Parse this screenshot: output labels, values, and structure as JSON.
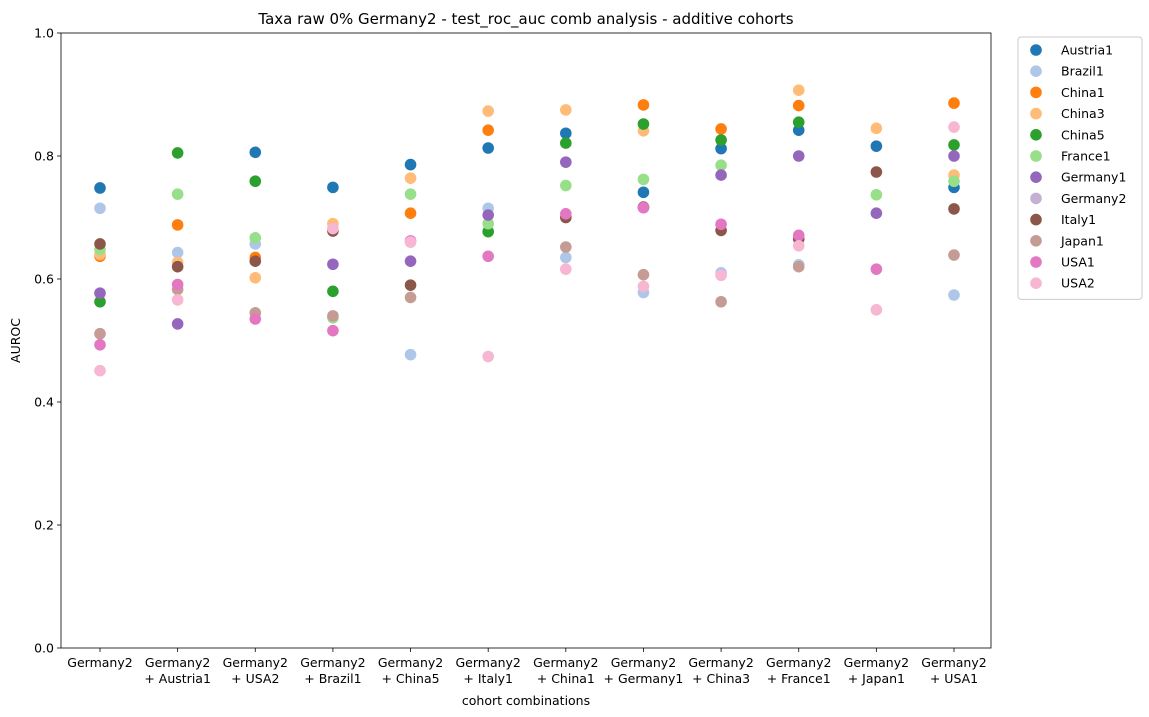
{
  "chart_data": {
    "type": "scatter",
    "title": "Taxa raw 0% Germany2 - test_roc_auc comb analysis - additive cohorts",
    "xlabel": "cohort combinations",
    "ylabel": "AUROC",
    "ylim": [
      0,
      1
    ],
    "yticks": [
      "0.0",
      "0.2",
      "0.4",
      "0.6",
      "0.8",
      "1.0"
    ],
    "grid": false,
    "legend": "outside-right",
    "categories": [
      [
        "Germany2"
      ],
      [
        "Germany2",
        "+ Austria1"
      ],
      [
        "Germany2",
        "+ USA2"
      ],
      [
        "Germany2",
        "+ Brazil1"
      ],
      [
        "Germany2",
        "+ China5"
      ],
      [
        "Germany2",
        "+ Italy1"
      ],
      [
        "Germany2",
        "+ China1"
      ],
      [
        "Germany2",
        "+ Germany1"
      ],
      [
        "Germany2",
        "+ China3"
      ],
      [
        "Germany2",
        "+ France1"
      ],
      [
        "Germany2",
        "+ Japan1"
      ],
      [
        "Germany2",
        "+ USA1"
      ]
    ],
    "series": [
      {
        "name": "Austria1",
        "color": "#1f77b4",
        "values": [
          0.748,
          null,
          0.806,
          0.749,
          0.786,
          0.813,
          0.837,
          0.741,
          0.812,
          0.842,
          0.816,
          0.749
        ]
      },
      {
        "name": "Brazil1",
        "color": "#aec7e8",
        "values": [
          0.715,
          0.643,
          0.657,
          null,
          0.477,
          0.715,
          0.635,
          0.578,
          0.61,
          0.623,
          null,
          0.574
        ]
      },
      {
        "name": "China1",
        "color": "#ff7f0e",
        "values": [
          0.637,
          0.688,
          0.635,
          null,
          0.707,
          0.842,
          null,
          0.883,
          0.844,
          0.882,
          null,
          0.886
        ]
      },
      {
        "name": "China3",
        "color": "#ffbb78",
        "values": [
          0.64,
          0.627,
          0.602,
          0.69,
          0.764,
          0.873,
          0.875,
          0.841,
          null,
          0.907,
          0.845,
          0.769
        ]
      },
      {
        "name": "China5",
        "color": "#2ca02c",
        "values": [
          0.563,
          0.805,
          0.759,
          0.58,
          null,
          0.677,
          0.821,
          0.852,
          0.826,
          0.855,
          null,
          0.818
        ]
      },
      {
        "name": "France1",
        "color": "#98df8a",
        "values": [
          0.648,
          0.738,
          0.667,
          0.537,
          0.738,
          0.69,
          0.752,
          0.762,
          0.785,
          null,
          0.737,
          0.759
        ]
      },
      {
        "name": "Germany1",
        "color": "#9467bd",
        "values": [
          0.577,
          0.527,
          null,
          0.624,
          0.629,
          0.704,
          0.79,
          0.716,
          0.769,
          0.8,
          0.707,
          0.8
        ]
      },
      {
        "name": "Germany2",
        "color": "#c5b0d5",
        "values": [
          null,
          null,
          null,
          null,
          null,
          null,
          null,
          null,
          null,
          null,
          null,
          null
        ]
      },
      {
        "name": "Italy1",
        "color": "#8c564b",
        "values": [
          0.657,
          0.62,
          0.629,
          0.678,
          0.59,
          null,
          0.7,
          0.717,
          0.679,
          0.665,
          0.774,
          0.714
        ]
      },
      {
        "name": "Japan1",
        "color": "#c49c94",
        "values": [
          0.511,
          0.583,
          0.545,
          0.54,
          0.57,
          null,
          0.652,
          0.607,
          0.563,
          0.62,
          null,
          0.639
        ]
      },
      {
        "name": "USA1",
        "color": "#e377c2",
        "values": [
          0.493,
          0.591,
          0.535,
          0.516,
          0.662,
          0.637,
          0.706,
          0.716,
          0.689,
          0.671,
          0.616,
          null
        ]
      },
      {
        "name": "USA2",
        "color": "#f7b6d2",
        "values": [
          0.451,
          0.566,
          null,
          0.682,
          0.66,
          0.474,
          0.616,
          0.588,
          0.606,
          0.654,
          0.55,
          0.847
        ]
      }
    ]
  }
}
